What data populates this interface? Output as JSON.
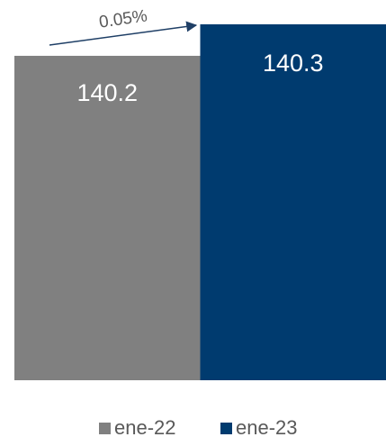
{
  "chart_data": {
    "type": "bar",
    "annotation": "0.05%",
    "series": [
      {
        "name": "ene-22",
        "color": "#808080",
        "values": [
          140.2
        ]
      },
      {
        "name": "ene-23",
        "color": "#003b6f",
        "values": [
          140.3
        ]
      }
    ],
    "ylim": [
      139.17,
      140.32
    ],
    "legend": "bottom"
  }
}
